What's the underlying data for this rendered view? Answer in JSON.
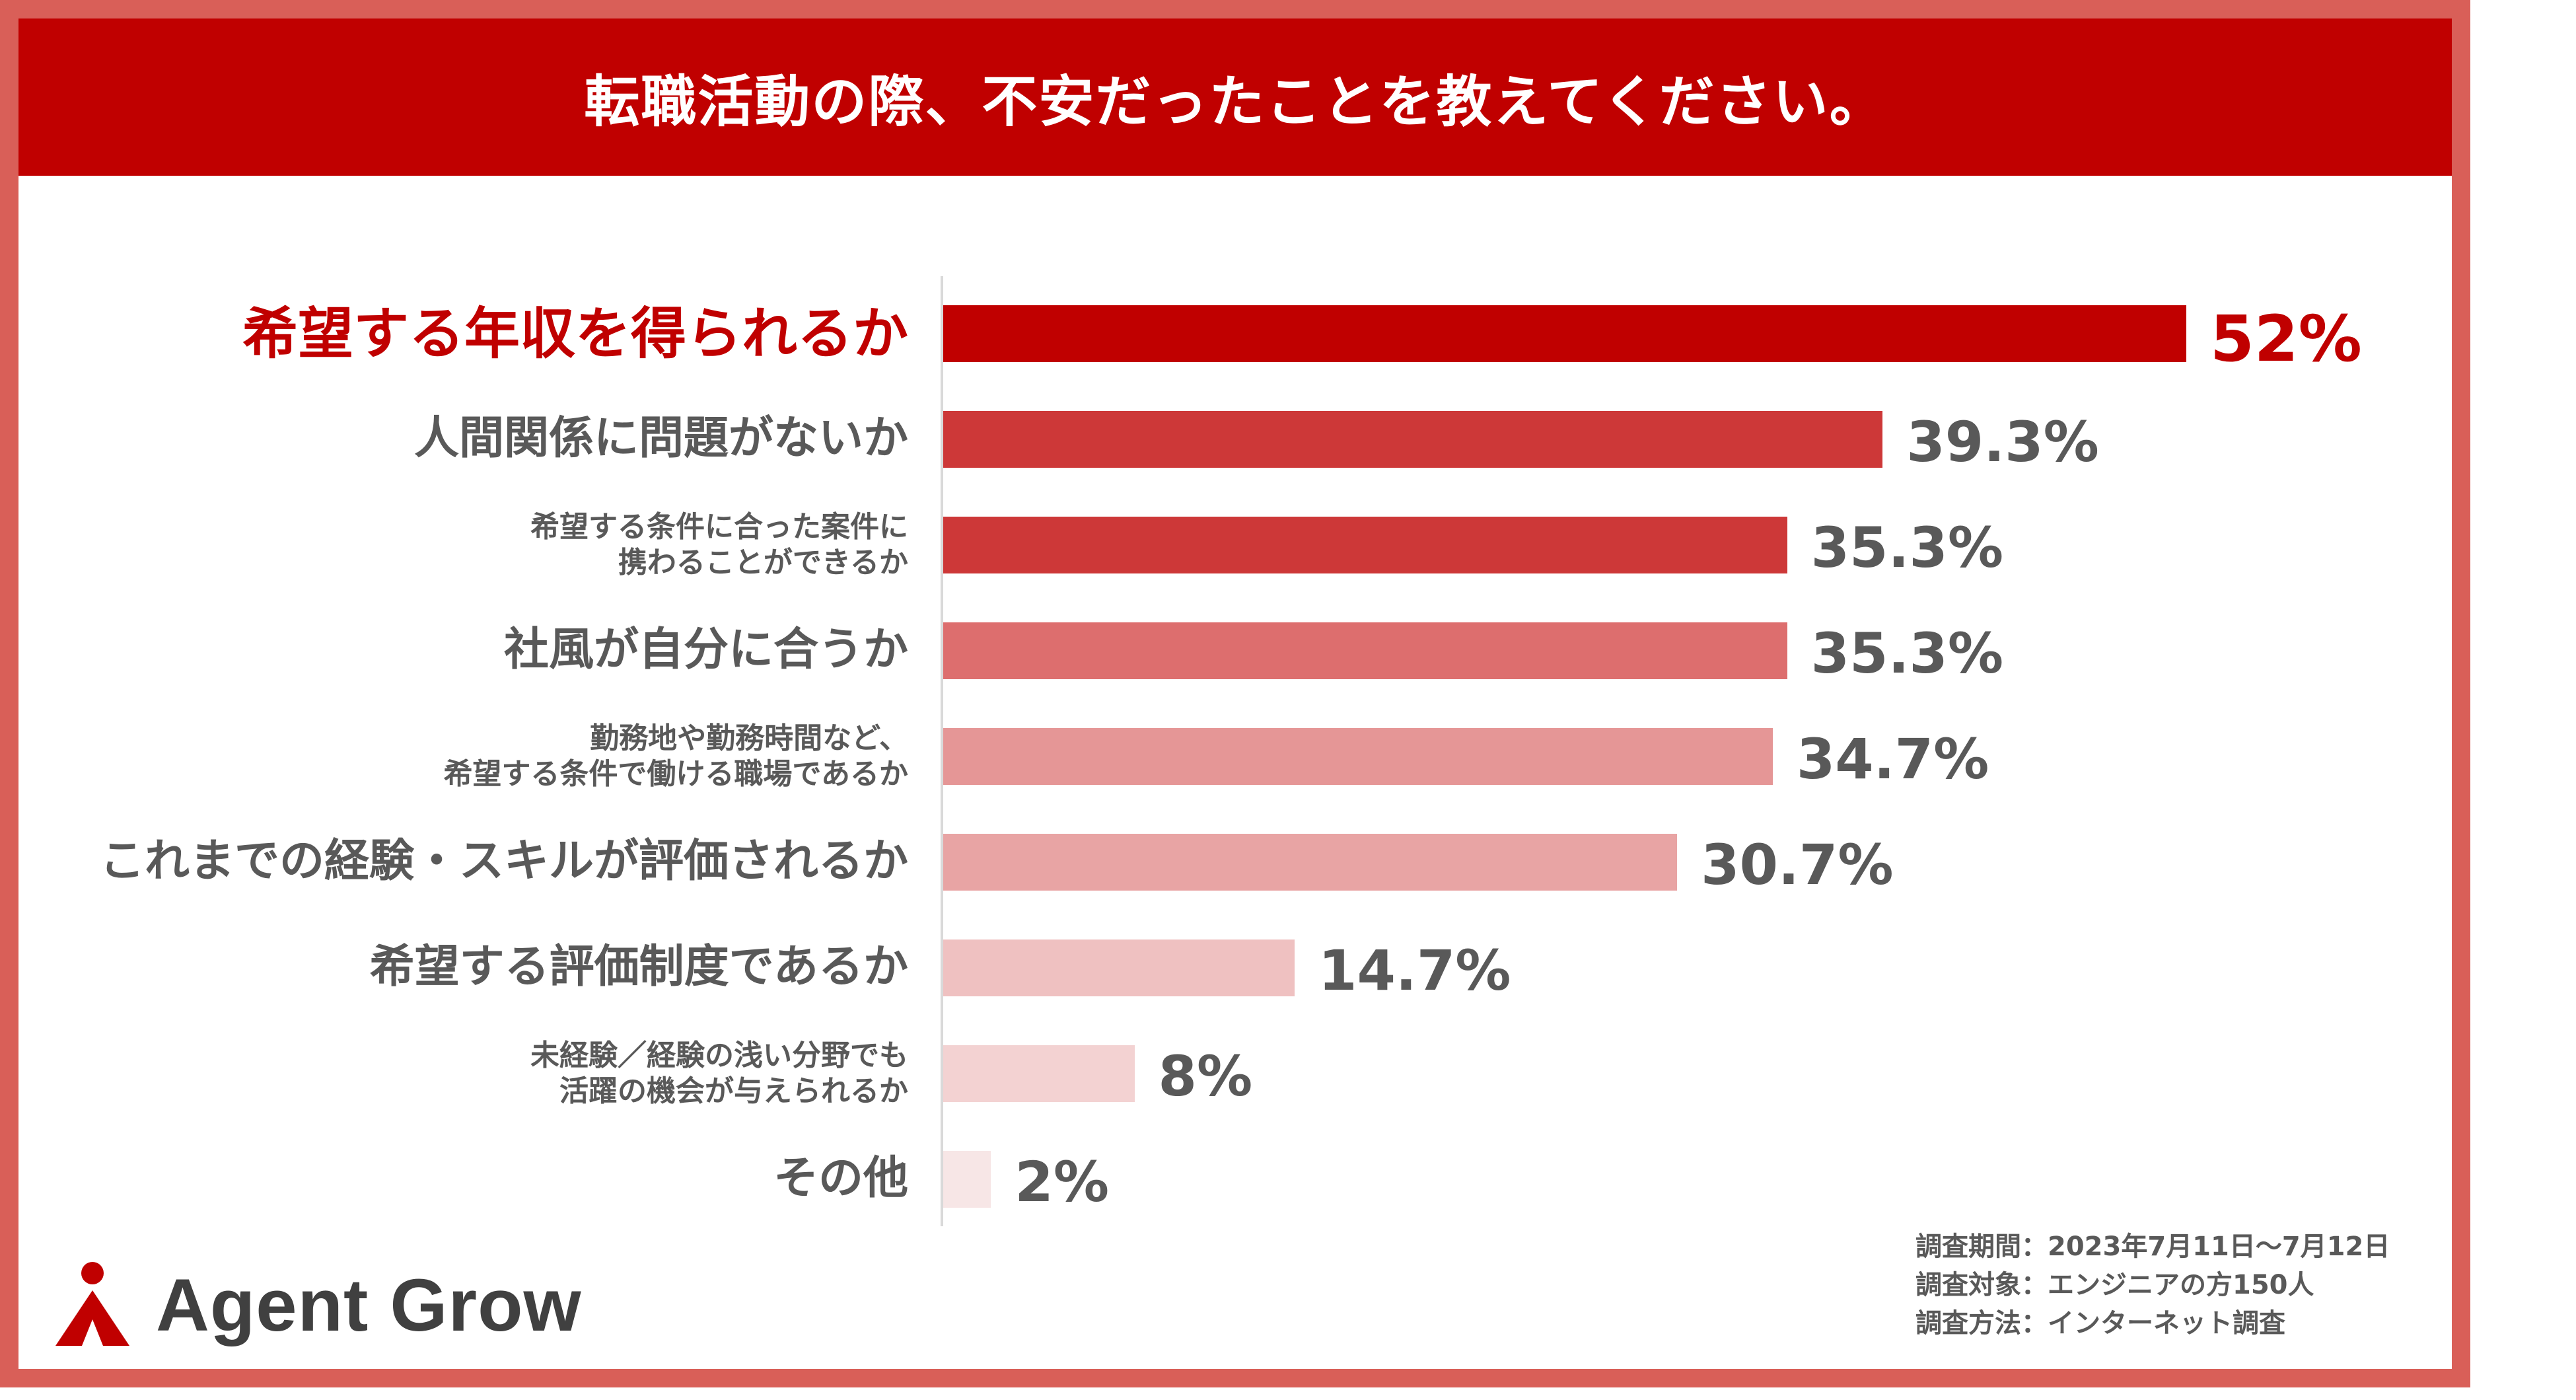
{
  "header": {
    "title": "転職活動の際、不安だったことを教えてください。"
  },
  "brand": {
    "name": "Agent Grow",
    "color": "#c00000"
  },
  "survey": {
    "period": "調査期間：2023年7月11日〜7月12日",
    "target": "調査対象：エンジニアの方150人",
    "method": "調査方法：インターネット調査"
  },
  "chart_data": {
    "type": "bar",
    "orientation": "horizontal",
    "title": "転職活動の際、不安だったことを教えてください。",
    "unit": "%",
    "xlim": [
      0,
      100
    ],
    "grid": false,
    "categories": [
      "希望する年収を得られるか",
      "人間関係に問題がないか",
      "希望する条件に合った案件に\n携わることができるか",
      "社風が自分に合うか",
      "勤務地や勤務時間など、\n希望する条件で働ける職場であるか",
      "これまでの経験・スキルが評価されるか",
      "希望する評価制度であるか",
      "未経験／経験の浅い分野でも\n活躍の機会が与えられるか",
      "その他"
    ],
    "values": [
      52,
      39.3,
      35.3,
      35.3,
      34.7,
      30.7,
      14.7,
      8,
      2
    ],
    "value_labels": [
      "52%",
      "39.3%",
      "35.3%",
      "35.3%",
      "34.7%",
      "30.7%",
      "14.7%",
      "8%",
      "2%"
    ],
    "colors": [
      "#c00000",
      "#cd3838",
      "#cd3838",
      "#dd6e6e",
      "#e59696",
      "#e8a4a4",
      "#efc1c1",
      "#f3d2d2",
      "#f7e6e6"
    ]
  }
}
